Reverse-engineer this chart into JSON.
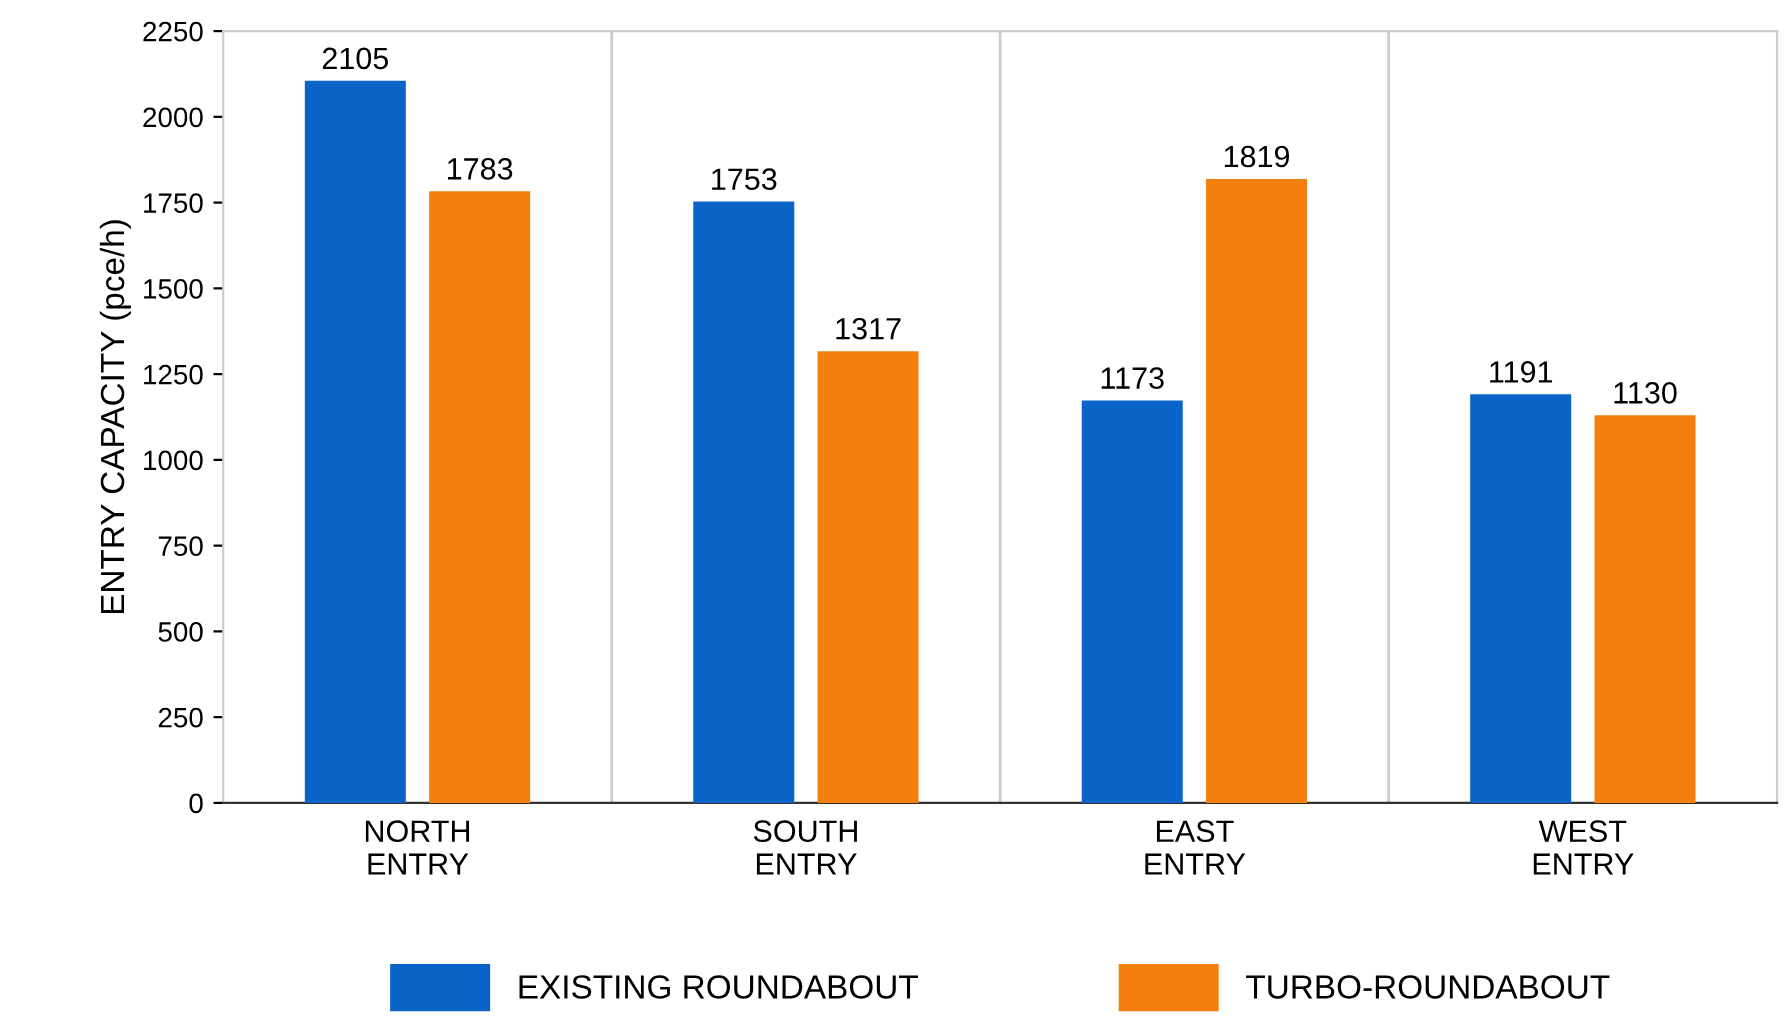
{
  "chart_data": {
    "type": "bar",
    "ylabel": "ENTRY CAPACITY (pce/h)",
    "categories": [
      "NORTH\nENTRY",
      "SOUTH\nENTRY",
      "EAST\nENTRY",
      "WEST\nENTRY"
    ],
    "series": [
      {
        "name": "EXISTING ROUNDABOUT",
        "color": "#0a64c8",
        "values": [
          2105,
          1753,
          1173,
          1191
        ]
      },
      {
        "name": "TURBO-ROUNDABOUT",
        "color": "#f57f0c",
        "values": [
          1783,
          1317,
          1819,
          1130
        ]
      }
    ],
    "ylim": [
      0,
      2250
    ],
    "yticks": [
      0,
      250,
      500,
      750,
      1000,
      1250,
      1500,
      1750,
      2000,
      2250
    ],
    "grid": "x",
    "legend": "bottom",
    "data_labels": true
  }
}
